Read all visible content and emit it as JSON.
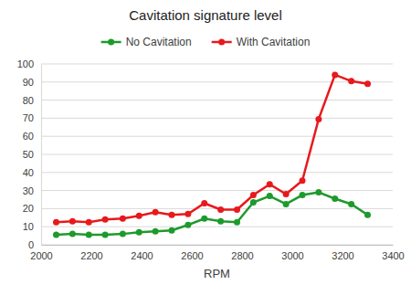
{
  "chart_data": {
    "type": "line",
    "title": "Cavitation signature level",
    "x_label": "RPM",
    "x": [
      2060,
      2125,
      2190,
      2255,
      2325,
      2390,
      2455,
      2520,
      2585,
      2650,
      2715,
      2780,
      2845,
      2910,
      2975,
      3040,
      3105,
      3170,
      3235,
      3300
    ],
    "series": [
      {
        "name": "No Cavitation",
        "color": "#1e9a2c",
        "values": [
          5.5,
          6,
          5.5,
          5.5,
          6,
          7,
          7.5,
          8,
          11,
          14.5,
          13,
          12.5,
          23.5,
          27,
          22.5,
          27.5,
          29,
          25.5,
          22.5,
          16.5
        ]
      },
      {
        "name": "With Cavitation",
        "color": "#e8191c",
        "values": [
          12.5,
          13,
          12.5,
          14,
          14.5,
          16,
          18,
          16.5,
          17,
          23,
          19.5,
          19.5,
          27.5,
          33.5,
          28,
          35.5,
          69.5,
          94,
          90.5,
          89
        ]
      }
    ],
    "xlim": [
      2000,
      3400
    ],
    "xticks": [
      2000,
      2200,
      2400,
      2600,
      2800,
      3000,
      3200,
      3400
    ],
    "ylim": [
      0,
      100
    ],
    "yticks": [
      0,
      10,
      20,
      30,
      40,
      50,
      60,
      70,
      80,
      90,
      100
    ],
    "grid": true,
    "legend": "top",
    "marker": "circle",
    "line_style": "solid"
  }
}
